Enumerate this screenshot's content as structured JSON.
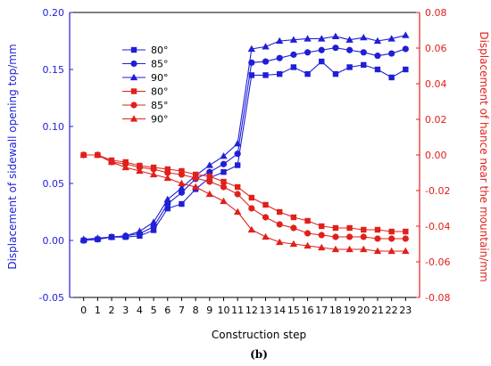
{
  "chart_data": {
    "type": "line",
    "panel_label": "(b)",
    "xlabel": "Construction step",
    "ylabel_left": "Displacement of sidewall opening top/mm",
    "ylabel_right": "Displacement of hance near the mountain/mm",
    "x": [
      0,
      1,
      2,
      3,
      4,
      5,
      6,
      7,
      8,
      9,
      10,
      11,
      12,
      13,
      14,
      15,
      16,
      17,
      18,
      19,
      20,
      21,
      22,
      23
    ],
    "x_tick_labels": [
      "0",
      "1",
      "2",
      "3",
      "4",
      "5",
      "6",
      "7",
      "8",
      "9",
      "10",
      "11",
      "12",
      "13",
      "14",
      "15",
      "16",
      "17",
      "18",
      "19",
      "20",
      "21",
      "22",
      "23"
    ],
    "ylim_left": [
      -0.05,
      0.2
    ],
    "yticks_left": [
      "-0.05",
      "0.00",
      "0.05",
      "0.10",
      "0.15",
      "0.20"
    ],
    "ylim_right": [
      -0.08,
      0.08
    ],
    "yticks_right": [
      "-0.08",
      "-0.06",
      "-0.04",
      "-0.02",
      "0.00",
      "0.02",
      "0.04",
      "0.06",
      "0.08"
    ],
    "grid": false,
    "legend_position": "upper-left",
    "left_axis_color": "#1f1fd6",
    "right_axis_color": "#e0201b",
    "series": [
      {
        "name": "80°",
        "axis": "left",
        "color": "#1f1fd6",
        "marker": "square",
        "values": [
          0.0,
          0.001,
          0.003,
          0.003,
          0.004,
          0.009,
          0.028,
          0.032,
          0.045,
          0.055,
          0.06,
          0.066,
          0.145,
          0.145,
          0.146,
          0.152,
          0.146,
          0.157,
          0.146,
          0.152,
          0.154,
          0.15,
          0.143,
          0.15
        ]
      },
      {
        "name": "85°",
        "axis": "left",
        "color": "#1f1fd6",
        "marker": "circle",
        "values": [
          0.0,
          0.001,
          0.003,
          0.004,
          0.006,
          0.012,
          0.032,
          0.042,
          0.054,
          0.06,
          0.067,
          0.076,
          0.156,
          0.157,
          0.16,
          0.163,
          0.165,
          0.167,
          0.169,
          0.167,
          0.165,
          0.162,
          0.164,
          0.168
        ]
      },
      {
        "name": "90°",
        "axis": "left",
        "color": "#1f1fd6",
        "marker": "triangle",
        "values": [
          0.001,
          0.002,
          0.003,
          0.004,
          0.008,
          0.016,
          0.036,
          0.046,
          0.057,
          0.066,
          0.074,
          0.085,
          0.168,
          0.17,
          0.175,
          0.176,
          0.177,
          0.177,
          0.179,
          0.176,
          0.178,
          0.175,
          0.177,
          0.18
        ]
      },
      {
        "name": "80°",
        "axis": "right",
        "color": "#e0201b",
        "marker": "square",
        "values": [
          0.0,
          0.0,
          -0.003,
          -0.004,
          -0.006,
          -0.007,
          -0.008,
          -0.009,
          -0.011,
          -0.012,
          -0.015,
          -0.018,
          -0.024,
          -0.028,
          -0.032,
          -0.035,
          -0.037,
          -0.04,
          -0.041,
          -0.041,
          -0.042,
          -0.042,
          -0.043,
          -0.043
        ]
      },
      {
        "name": "85°",
        "axis": "right",
        "color": "#e0201b",
        "marker": "circle",
        "values": [
          0.0,
          0.0,
          -0.004,
          -0.005,
          -0.007,
          -0.008,
          -0.01,
          -0.011,
          -0.013,
          -0.015,
          -0.018,
          -0.022,
          -0.03,
          -0.035,
          -0.039,
          -0.041,
          -0.044,
          -0.045,
          -0.046,
          -0.046,
          -0.046,
          -0.047,
          -0.047,
          -0.047
        ]
      },
      {
        "name": "90°",
        "axis": "right",
        "color": "#e0201b",
        "marker": "triangle",
        "values": [
          0.0,
          0.0,
          -0.004,
          -0.007,
          -0.009,
          -0.011,
          -0.013,
          -0.016,
          -0.018,
          -0.022,
          -0.026,
          -0.032,
          -0.042,
          -0.046,
          -0.049,
          -0.05,
          -0.051,
          -0.052,
          -0.053,
          -0.053,
          -0.053,
          -0.054,
          -0.054,
          -0.054
        ]
      }
    ]
  }
}
